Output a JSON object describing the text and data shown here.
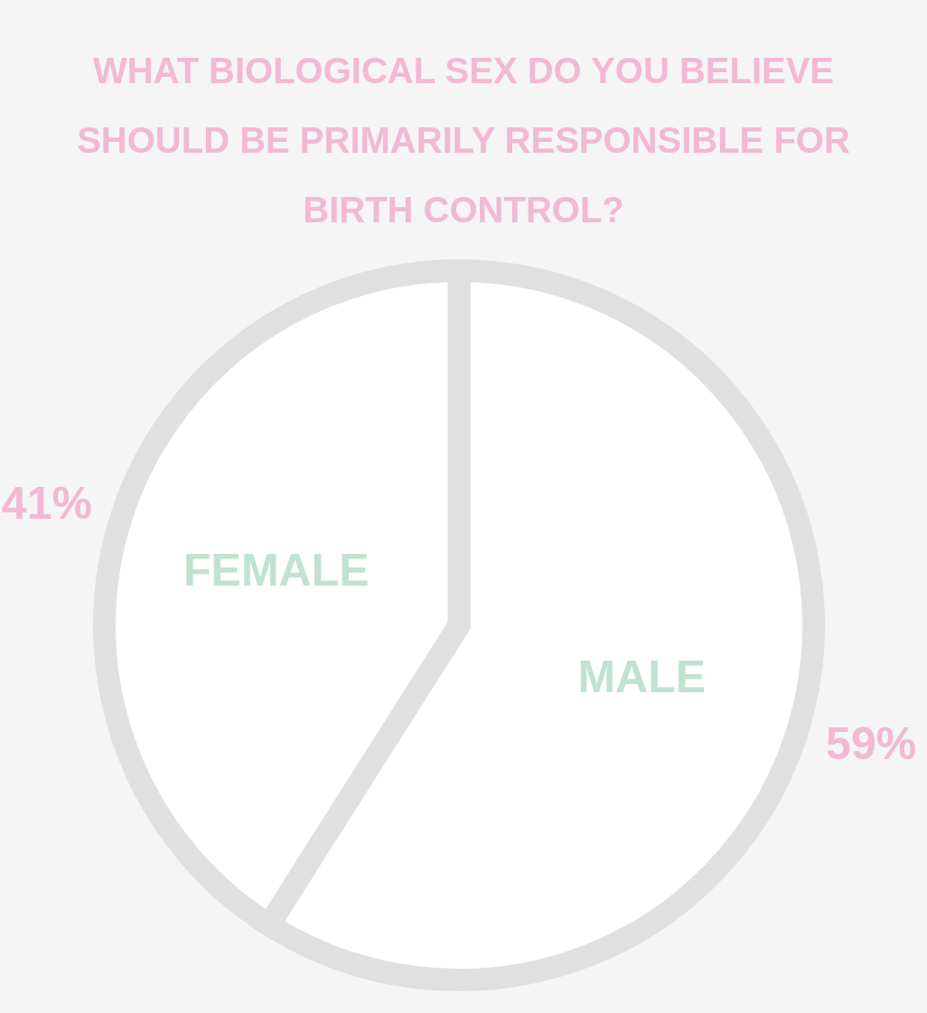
{
  "chart_data": {
    "type": "pie",
    "title": "WHAT BIOLOGICAL SEX DO YOU BELIEVE SHOULD BE PRIMARILY RESPONSIBLE FOR BIRTH CONTROL?",
    "categories": [
      "MALE",
      "FEMALE"
    ],
    "values": [
      59,
      41
    ],
    "colors": [
      "#ffffff",
      "#ffffff"
    ],
    "value_labels": [
      "59%",
      "41%"
    ]
  }
}
